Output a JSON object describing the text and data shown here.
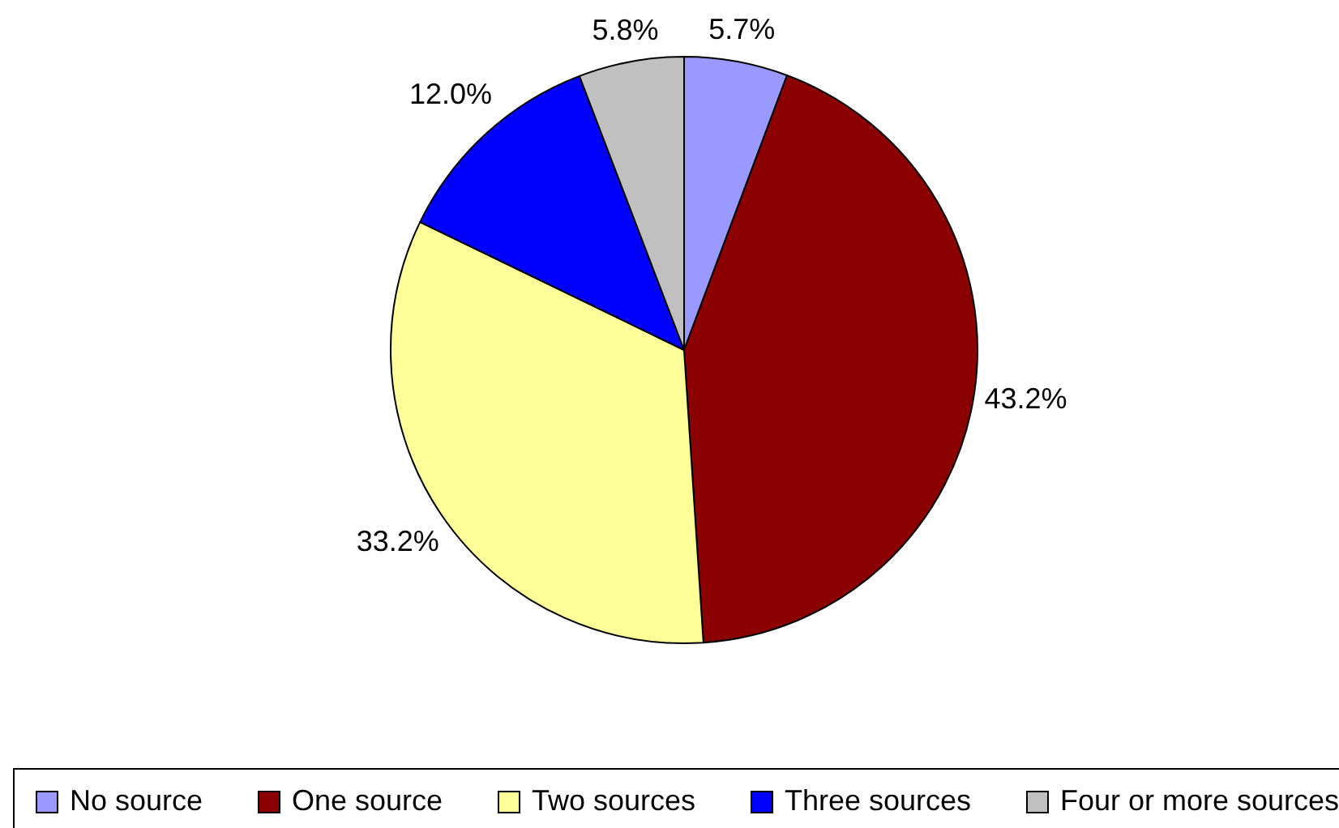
{
  "chart_data": {
    "type": "pie",
    "categories": [
      "No source",
      "One source",
      "Two sources",
      "Three sources",
      "Four or more sources"
    ],
    "values": [
      5.7,
      43.2,
      33.2,
      12.0,
      5.8
    ],
    "colors": [
      "#9999ff",
      "#8b0000",
      "#ffff99",
      "#0000ff",
      "#c0c0c0"
    ],
    "value_labels": [
      "5.7%",
      "43.2%",
      "33.2%",
      "12.0%",
      "5.8%"
    ],
    "legend": "bottom"
  }
}
